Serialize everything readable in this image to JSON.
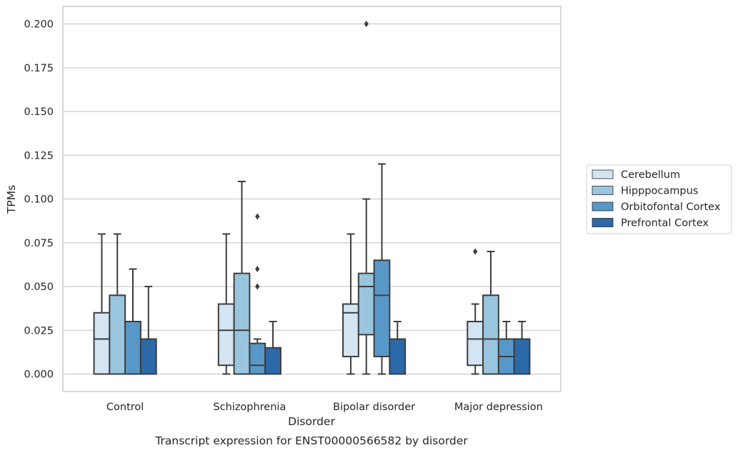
{
  "caption": "Transcript expression for ENST00000566582 by disorder",
  "chart_data": {
    "type": "box",
    "xlabel": "Disorder",
    "ylabel": "TPMs",
    "ylim": [
      -0.01,
      0.21
    ],
    "yticks": [
      0.0,
      0.025,
      0.05,
      0.075,
      0.1,
      0.125,
      0.15,
      0.175,
      0.2
    ],
    "ytick_labels": [
      "0.000",
      "0.025",
      "0.050",
      "0.075",
      "0.100",
      "0.125",
      "0.150",
      "0.175",
      "0.200"
    ],
    "categories": [
      "Control",
      "Schizophrenia",
      "Bipolar disorder",
      "Major depression"
    ],
    "grid": "horizontal",
    "legend_position": "right",
    "series": [
      {
        "name": "Cerebellum",
        "color": "#d3e4f3",
        "boxes": [
          {
            "whislo": 0.0,
            "q1": 0.0,
            "med": 0.02,
            "q3": 0.035,
            "whishi": 0.08,
            "fliers": []
          },
          {
            "whislo": 0.0,
            "q1": 0.005,
            "med": 0.025,
            "q3": 0.04,
            "whishi": 0.08,
            "fliers": []
          },
          {
            "whislo": 0.0,
            "q1": 0.01,
            "med": 0.035,
            "q3": 0.04,
            "whishi": 0.08,
            "fliers": []
          },
          {
            "whislo": 0.0,
            "q1": 0.005,
            "med": 0.02,
            "q3": 0.03,
            "whishi": 0.04,
            "fliers": [
              0.07
            ]
          }
        ]
      },
      {
        "name": "Hipppocampus",
        "color": "#9ac5df",
        "boxes": [
          {
            "whislo": 0.0,
            "q1": 0.0,
            "med": 0.0,
            "q3": 0.045,
            "whishi": 0.08,
            "fliers": []
          },
          {
            "whislo": 0.0,
            "q1": 0.0,
            "med": 0.025,
            "q3": 0.0575,
            "whishi": 0.11,
            "fliers": []
          },
          {
            "whislo": 0.0,
            "q1": 0.0225,
            "med": 0.05,
            "q3": 0.0575,
            "whishi": 0.1,
            "fliers": [
              0.2
            ]
          },
          {
            "whislo": 0.0,
            "q1": 0.0,
            "med": 0.02,
            "q3": 0.045,
            "whishi": 0.07,
            "fliers": []
          }
        ]
      },
      {
        "name": "Orbitofontal Cortex",
        "color": "#5898c8",
        "boxes": [
          {
            "whislo": 0.0,
            "q1": 0.0,
            "med": 0.0,
            "q3": 0.03,
            "whishi": 0.06,
            "fliers": []
          },
          {
            "whislo": 0.0,
            "q1": 0.0,
            "med": 0.005,
            "q3": 0.0175,
            "whishi": 0.02,
            "fliers": [
              0.05,
              0.06,
              0.09
            ]
          },
          {
            "whislo": 0.0,
            "q1": 0.01,
            "med": 0.045,
            "q3": 0.065,
            "whishi": 0.12,
            "fliers": []
          },
          {
            "whislo": 0.0,
            "q1": 0.0,
            "med": 0.01,
            "q3": 0.02,
            "whishi": 0.03,
            "fliers": []
          }
        ]
      },
      {
        "name": "Prefrontal Cortex",
        "color": "#2c69a8",
        "boxes": [
          {
            "whislo": 0.0,
            "q1": 0.0,
            "med": 0.0,
            "q3": 0.02,
            "whishi": 0.05,
            "fliers": []
          },
          {
            "whislo": 0.0,
            "q1": 0.0,
            "med": 0.0,
            "q3": 0.015,
            "whishi": 0.03,
            "fliers": []
          },
          {
            "whislo": 0.0,
            "q1": 0.0,
            "med": 0.0,
            "q3": 0.02,
            "whishi": 0.03,
            "fliers": []
          },
          {
            "whislo": 0.0,
            "q1": 0.0,
            "med": 0.0,
            "q3": 0.02,
            "whishi": 0.03,
            "fliers": []
          }
        ]
      }
    ]
  }
}
